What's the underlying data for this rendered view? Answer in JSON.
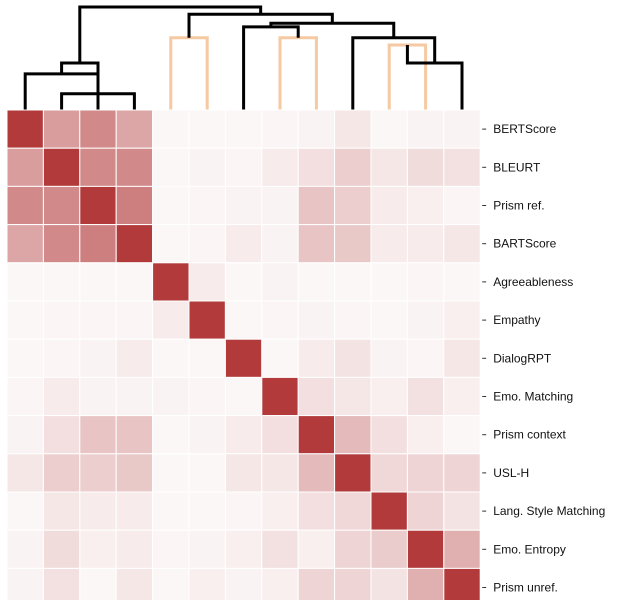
{
  "chart_data": {
    "type": "heatmap",
    "title": "",
    "xlabel": "",
    "ylabel": "",
    "row_labels": [
      "BERTScore",
      "BLEURT",
      "Prism ref.",
      "BARTScore",
      "Agreeableness",
      "Empathy",
      "DialogRPT",
      "Emo. Matching",
      "Prism context",
      "USL-H",
      "Lang. Style Matching",
      "Emo. Entropy",
      "Prism unref."
    ],
    "col_labels": [],
    "value_range": [
      0,
      1
    ],
    "values": [
      [
        1.0,
        0.5,
        0.6,
        0.45,
        0.04,
        0.04,
        0.04,
        0.05,
        0.06,
        0.12,
        0.04,
        0.06,
        0.06
      ],
      [
        0.5,
        1.0,
        0.6,
        0.6,
        0.04,
        0.06,
        0.05,
        0.1,
        0.16,
        0.25,
        0.12,
        0.18,
        0.15
      ],
      [
        0.6,
        0.6,
        1.0,
        0.65,
        0.04,
        0.05,
        0.06,
        0.06,
        0.3,
        0.25,
        0.1,
        0.08,
        0.05
      ],
      [
        0.45,
        0.6,
        0.65,
        1.0,
        0.04,
        0.05,
        0.1,
        0.06,
        0.3,
        0.28,
        0.1,
        0.1,
        0.12
      ],
      [
        0.04,
        0.04,
        0.04,
        0.04,
        1.0,
        0.1,
        0.04,
        0.06,
        0.04,
        0.04,
        0.04,
        0.05,
        0.04
      ],
      [
        0.04,
        0.05,
        0.05,
        0.05,
        0.1,
        1.0,
        0.04,
        0.05,
        0.06,
        0.05,
        0.04,
        0.06,
        0.08
      ],
      [
        0.04,
        0.05,
        0.06,
        0.1,
        0.04,
        0.04,
        1.0,
        0.04,
        0.1,
        0.14,
        0.06,
        0.05,
        0.12
      ],
      [
        0.05,
        0.1,
        0.06,
        0.06,
        0.06,
        0.05,
        0.04,
        1.0,
        0.16,
        0.12,
        0.08,
        0.15,
        0.08
      ],
      [
        0.06,
        0.16,
        0.3,
        0.3,
        0.04,
        0.06,
        0.1,
        0.16,
        1.0,
        0.35,
        0.16,
        0.08,
        0.04
      ],
      [
        0.12,
        0.25,
        0.25,
        0.28,
        0.04,
        0.04,
        0.12,
        0.12,
        0.35,
        1.0,
        0.2,
        0.22,
        0.22
      ],
      [
        0.04,
        0.12,
        0.1,
        0.1,
        0.04,
        0.04,
        0.05,
        0.08,
        0.16,
        0.2,
        1.0,
        0.22,
        0.14
      ],
      [
        0.06,
        0.18,
        0.08,
        0.1,
        0.05,
        0.06,
        0.08,
        0.15,
        0.08,
        0.22,
        0.26,
        1.0,
        0.4
      ],
      [
        0.06,
        0.15,
        0.04,
        0.12,
        0.04,
        0.08,
        0.06,
        0.08,
        0.22,
        0.22,
        0.14,
        0.4,
        1.0
      ]
    ],
    "colors": {
      "low": "#ffffff",
      "high": "#b23a3a",
      "cell_border": "#ffffff",
      "dendrogram_main": "#000000",
      "dendrogram_alt": "#f5c9a1"
    },
    "dendrogram": {
      "links": [
        {
          "i": 1,
          "j": 3,
          "h": 0.18,
          "group": "main"
        },
        {
          "i": 0,
          "j": 13,
          "h": 0.4,
          "group": "main"
        },
        {
          "i": 2,
          "j": 14,
          "h": 0.52,
          "group": "main"
        },
        {
          "i": 4,
          "j": 5,
          "h": 0.8,
          "group": "alt"
        },
        {
          "i": 7,
          "j": 8,
          "h": 0.8,
          "group": "alt"
        },
        {
          "i": 10,
          "j": 11,
          "h": 0.72,
          "group": "alt"
        },
        {
          "i": 12,
          "j": 18,
          "h": 0.52,
          "group": "main"
        },
        {
          "i": 9,
          "j": 19,
          "h": 0.8,
          "group": "main"
        },
        {
          "i": 6,
          "j": 17,
          "h": 0.92,
          "group": "main"
        },
        {
          "i": 20,
          "j": 21,
          "h": 0.96,
          "group": "main"
        },
        {
          "i": 16,
          "j": 22,
          "h": 1.06,
          "group": "main"
        },
        {
          "i": 15,
          "j": 23,
          "h": 1.14,
          "group": "main"
        }
      ],
      "max_height": 1.14
    },
    "grid": false,
    "legend": "none"
  }
}
